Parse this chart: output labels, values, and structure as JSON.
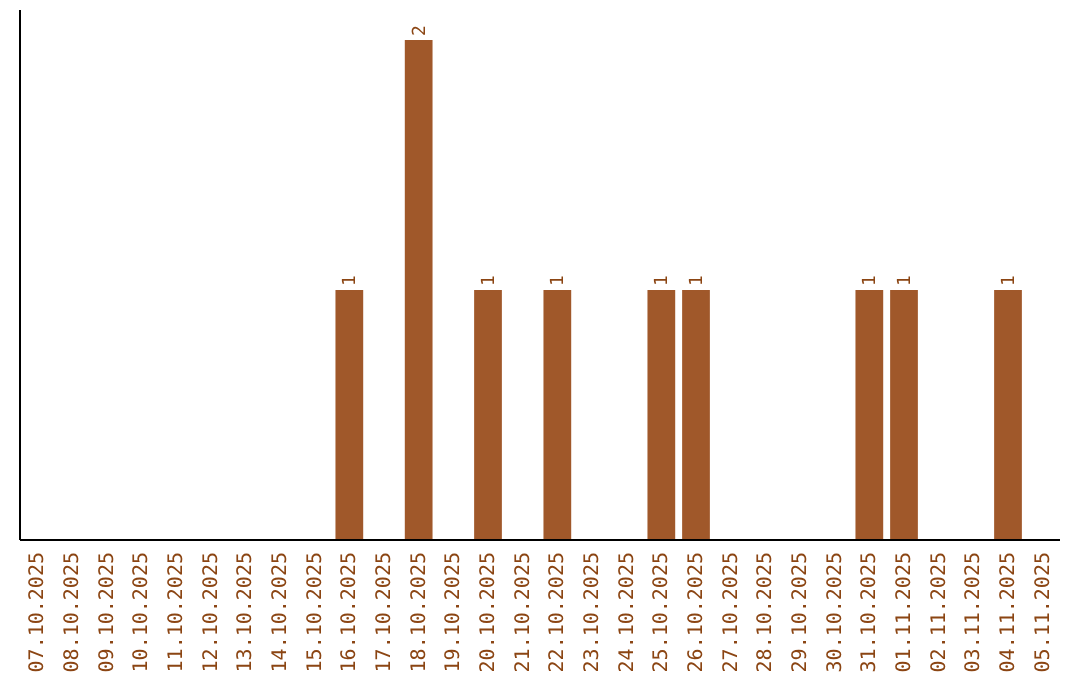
{
  "chart_data": {
    "type": "bar",
    "categories": [
      "07.10.2025",
      "08.10.2025",
      "09.10.2025",
      "10.10.2025",
      "11.10.2025",
      "12.10.2025",
      "13.10.2025",
      "14.10.2025",
      "15.10.2025",
      "16.10.2025",
      "17.10.2025",
      "18.10.2025",
      "19.10.2025",
      "20.10.2025",
      "21.10.2025",
      "22.10.2025",
      "23.10.2025",
      "24.10.2025",
      "25.10.2025",
      "26.10.2025",
      "27.10.2025",
      "28.10.2025",
      "29.10.2025",
      "30.10.2025",
      "31.10.2025",
      "01.11.2025",
      "02.11.2025",
      "03.11.2025",
      "04.11.2025",
      "05.11.2025"
    ],
    "values": [
      0,
      0,
      0,
      0,
      0,
      0,
      0,
      0,
      0,
      1,
      0,
      2,
      0,
      1,
      0,
      1,
      0,
      0,
      1,
      1,
      0,
      0,
      0,
      0,
      1,
      1,
      0,
      0,
      1,
      0
    ],
    "value_labels": [
      null,
      null,
      null,
      null,
      null,
      null,
      null,
      null,
      null,
      "1",
      null,
      "2",
      null,
      "1",
      null,
      "1",
      null,
      null,
      "1",
      "1",
      null,
      null,
      null,
      null,
      "1",
      "1",
      null,
      null,
      "1",
      null
    ],
    "color": "#a0582a"
  }
}
